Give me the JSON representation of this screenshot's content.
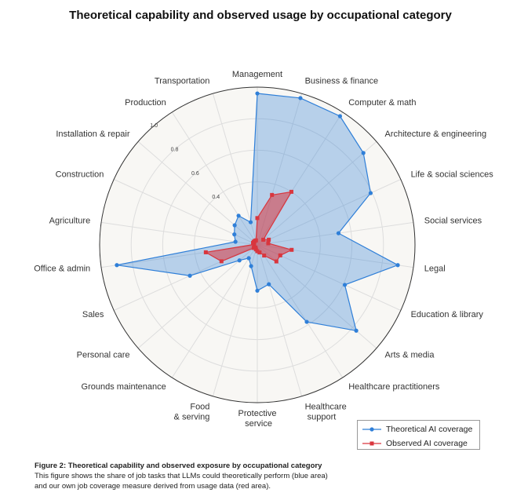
{
  "chart_data": {
    "type": "radar",
    "title": "Theoretical capability and observed usage by occupational category",
    "categories": [
      "Management",
      "Business & finance",
      "Computer & math",
      "Architecture & engineering",
      "Life & social sciences",
      "Social services",
      "Legal",
      "Education & library",
      "Arts & media",
      "Healthcare practitioners",
      "Healthcare support",
      "Protective service",
      "Food & serving",
      "Grounds maintenance",
      "Personal care",
      "Sales",
      "Office & admin",
      "Agriculture",
      "Construction",
      "Installation & repair",
      "Production",
      "Transportation"
    ],
    "series": [
      {
        "name": "Theoretical AI coverage",
        "color": "#2f7fd8",
        "marker": "circle",
        "values": [
          0.96,
          0.97,
          0.97,
          0.89,
          0.79,
          0.52,
          0.9,
          0.61,
          0.83,
          0.58,
          0.26,
          0.29,
          0.14,
          0.1,
          0.15,
          0.47,
          0.9,
          0.14,
          0.16,
          0.19,
          0.22,
          0.15
        ]
      },
      {
        "name": "Observed AI coverage",
        "color": "#d9363e",
        "marker": "square",
        "values": [
          0.17,
          0.33,
          0.4,
          0.05,
          0.08,
          0.07,
          0.22,
          0.16,
          0.16,
          0.08,
          0.05,
          0.04,
          0.03,
          0.02,
          0.03,
          0.25,
          0.33,
          0.02,
          0.03,
          0.03,
          0.03,
          0.03
        ]
      }
    ],
    "rlim": [
      0,
      1
    ],
    "rticks": [
      0.4,
      0.6,
      0.8,
      {
        "value": 1,
        "label": "1.0"
      }
    ],
    "legend": "lower right",
    "caption": {
      "title": "Figure 2: Theoretical capability and observed exposure by occupational category",
      "text": "This figure shows the share of job tasks that LLMs could theoretically perform (blue area) and our own job coverage measure derived from usage data (red area)."
    }
  }
}
